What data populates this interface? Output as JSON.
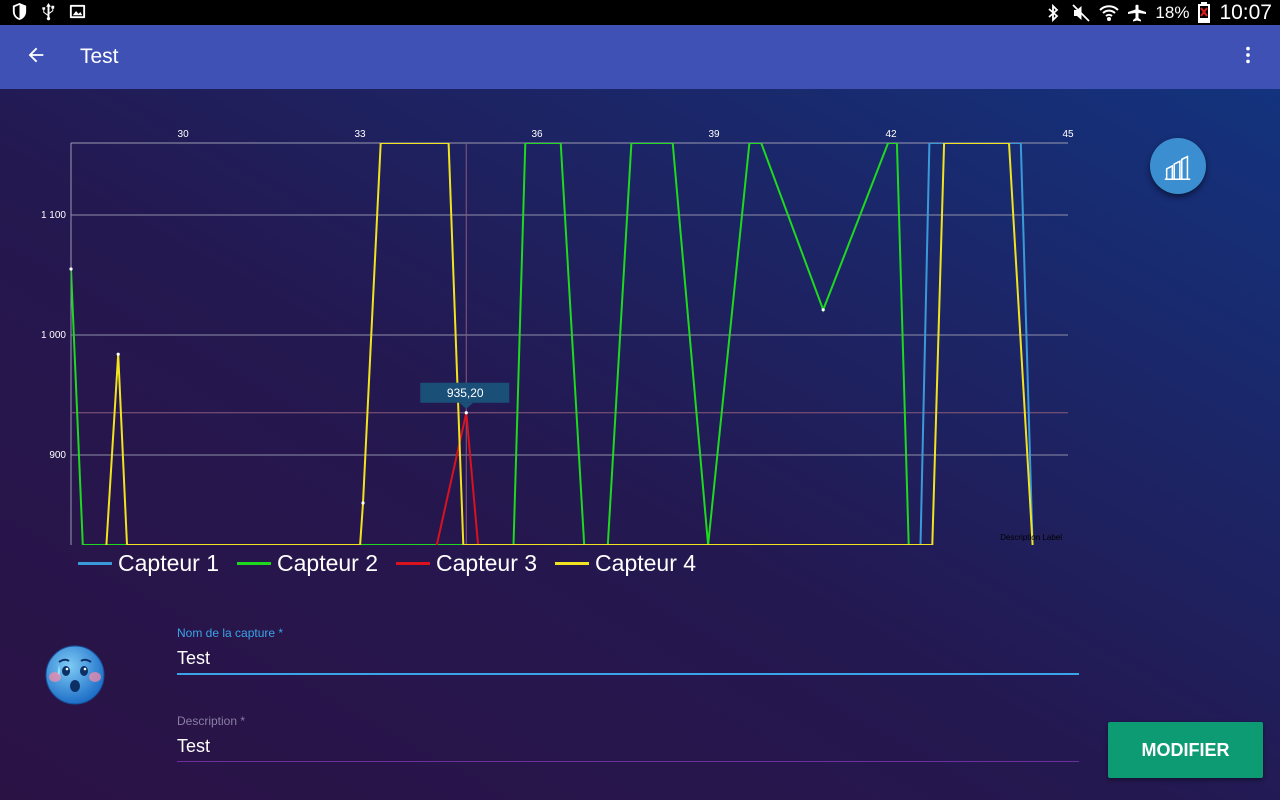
{
  "status_bar": {
    "battery_percent": "18%",
    "time": "10:07"
  },
  "app_bar": {
    "title": "Test"
  },
  "chart_data": {
    "type": "line",
    "x_ticks": [
      "30",
      "33",
      "36",
      "39",
      "42",
      "45"
    ],
    "y_ticks": [
      "1 100",
      "1 000",
      "900"
    ],
    "xlim": [
      28.1,
      45
    ],
    "ylim": [
      825,
      1160
    ],
    "description_label": "Description Label",
    "highlight": {
      "x": 34.8,
      "y": 935.2,
      "label": "935,20"
    },
    "series": [
      {
        "name": "Capteur 1",
        "color": "#3a9ad9",
        "points": [
          [
            42.5,
            825
          ],
          [
            42.65,
            1160
          ],
          [
            44.2,
            1160
          ],
          [
            44.4,
            824
          ]
        ]
      },
      {
        "name": "Capteur 2",
        "color": "#1ed91e",
        "points": [
          [
            28.1,
            1055
          ],
          [
            28.3,
            825
          ],
          [
            35.6,
            825
          ],
          [
            35.8,
            1160
          ],
          [
            36.4,
            1160
          ],
          [
            36.8,
            825
          ],
          [
            37.2,
            825
          ],
          [
            37.6,
            1160
          ],
          [
            38.3,
            1160
          ],
          [
            38.9,
            825
          ],
          [
            39.6,
            1160
          ],
          [
            39.8,
            1160
          ],
          [
            40.85,
            1021
          ],
          [
            41.95,
            1160
          ],
          [
            42.1,
            1160
          ],
          [
            42.3,
            825
          ]
        ]
      },
      {
        "name": "Capteur 3",
        "color": "#d9121e",
        "points": [
          [
            34.3,
            825
          ],
          [
            34.8,
            935.2
          ],
          [
            35.0,
            825
          ]
        ]
      },
      {
        "name": "Capteur 4",
        "color": "#f0e31f",
        "points": [
          [
            28.7,
            825
          ],
          [
            28.9,
            984
          ],
          [
            29.05,
            825
          ],
          [
            33.0,
            825
          ],
          [
            33.05,
            860
          ],
          [
            33.35,
            1160
          ],
          [
            34.5,
            1160
          ],
          [
            34.75,
            825
          ],
          [
            42.7,
            825
          ],
          [
            42.9,
            1160
          ],
          [
            44.0,
            1160
          ],
          [
            44.4,
            825
          ]
        ]
      }
    ]
  },
  "form": {
    "name_label": "Nom de la capture *",
    "name_value": "Test",
    "description_label": "Description *",
    "description_value": "Test"
  },
  "modify_button": "MODIFIER"
}
